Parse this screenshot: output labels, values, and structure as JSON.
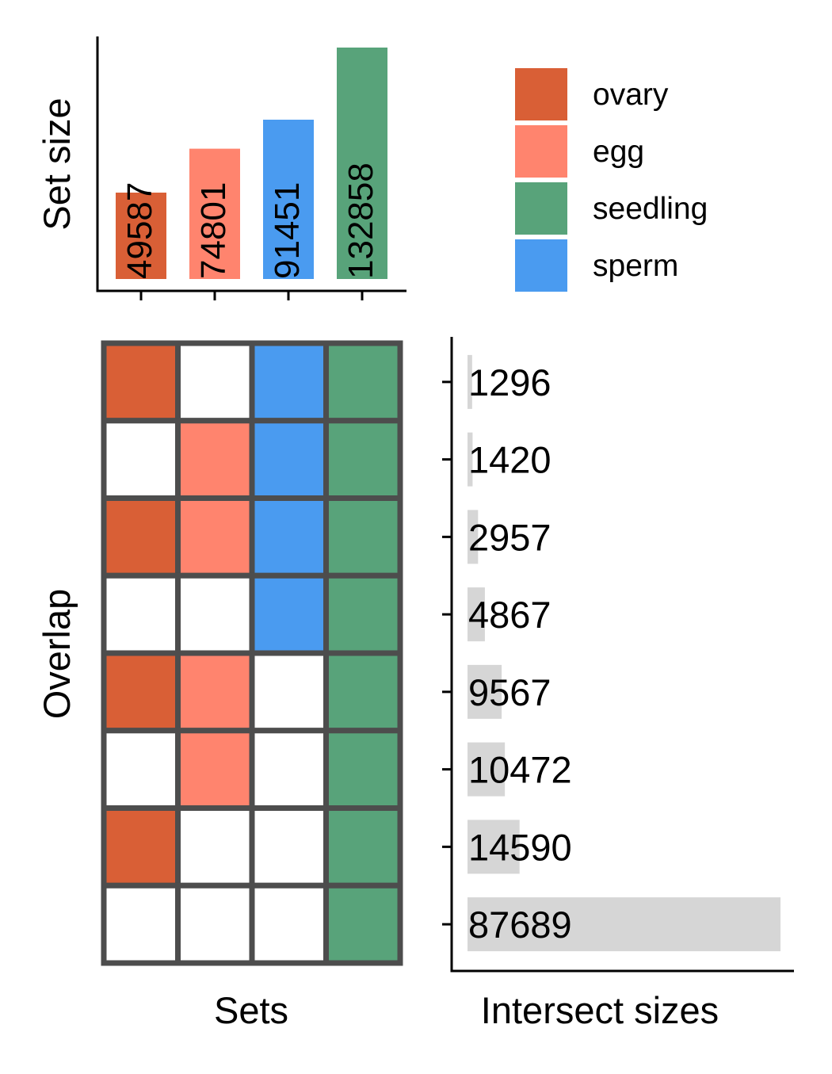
{
  "chart_data": {
    "type": "upset",
    "set_size_chart": {
      "type": "bar",
      "ylabel": "Set size",
      "categories": [
        "ovary",
        "egg",
        "sperm",
        "seedling"
      ],
      "values": [
        49587,
        74801,
        91451,
        132858
      ],
      "colors": [
        "#D95F36",
        "#FF846E",
        "#4A9BF0",
        "#58A37A"
      ],
      "ylim": [
        0,
        132858
      ]
    },
    "legend": {
      "placement": "top-right",
      "entries": [
        {
          "name": "ovary",
          "color": "#D95F36"
        },
        {
          "name": "egg",
          "color": "#FF846E"
        },
        {
          "name": "seedling",
          "color": "#58A37A"
        },
        {
          "name": "sperm",
          "color": "#4A9BF0"
        }
      ]
    },
    "overlap_matrix": {
      "type": "heatmap",
      "ylabel": "Overlap",
      "xlabel": "Sets",
      "columns": [
        "ovary",
        "egg",
        "sperm",
        "seedling"
      ],
      "column_colors": [
        "#D95F36",
        "#FF846E",
        "#4A9BF0",
        "#58A37A"
      ],
      "empty_color": "#FFFFFF",
      "border_color": "#4D4D4D",
      "rows": [
        [
          1,
          0,
          1,
          1
        ],
        [
          0,
          1,
          1,
          1
        ],
        [
          1,
          1,
          1,
          1
        ],
        [
          0,
          0,
          1,
          1
        ],
        [
          1,
          1,
          0,
          1
        ],
        [
          0,
          1,
          0,
          1
        ],
        [
          1,
          0,
          0,
          1
        ],
        [
          0,
          0,
          0,
          1
        ]
      ]
    },
    "intersect_chart": {
      "type": "bar",
      "orientation": "horizontal",
      "xlabel": "Intersect sizes",
      "values": [
        1296,
        1420,
        2957,
        4867,
        9567,
        10472,
        14590,
        87689
      ],
      "bar_color": "#D6D6D6",
      "xlim": [
        0,
        87689
      ]
    }
  }
}
